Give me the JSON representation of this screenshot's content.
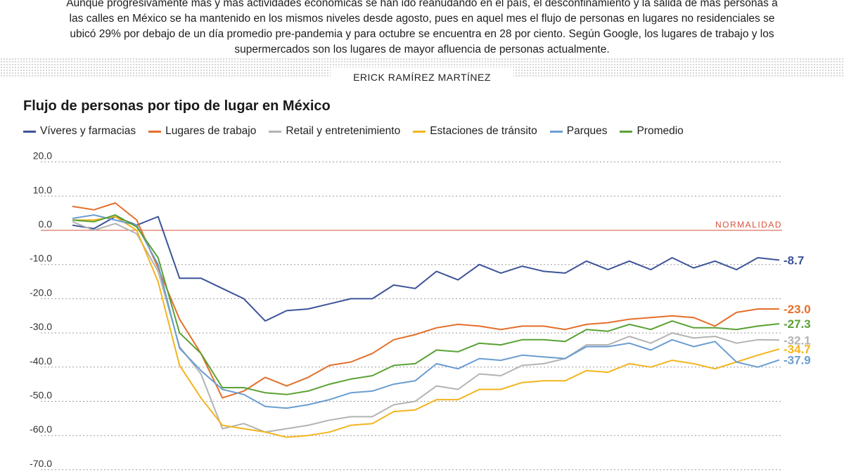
{
  "intro": [
    "Aunque progresivamente más y más actividades económicas se han ido reanudando en el país, el desconfinamiento y la salida de más personas a",
    "las calles en México se ha mantenido en los mismos niveles desde agosto, pues en aquel mes el flujo de personas en lugares no residenciales se",
    "ubicó 29% por debajo de un día promedio pre-pandemia y para octubre se encuentra en 28 por ciento. Según Google, los lugares de trabajo y los",
    "supermercados son los lugares de mayor afluencia de personas actualmente."
  ],
  "byline": "ERICK RAMÍREZ MARTÍNEZ",
  "chart_data": {
    "type": "line",
    "title": "Flujo de personas por tipo de lugar en México",
    "xlabel": "",
    "ylabel": "",
    "ylim": [
      -70,
      20
    ],
    "yticks": [
      "20.0",
      "10.0",
      "0.0",
      "-10.0",
      "-20.0",
      "-30.0",
      "-40.0",
      "-50.0",
      "-60.0",
      "-70.0"
    ],
    "grid": true,
    "legend_position": "top-left",
    "reference_line": {
      "label": "NORMALIDAD",
      "value": 0,
      "color": "#d94f3a"
    },
    "series": [
      {
        "name": "Víveres y farmacias",
        "color": "#3d5499",
        "end_label": "-8.7",
        "values": [
          1.5,
          0.5,
          4,
          1.5,
          4,
          -14,
          -14,
          -17,
          -20,
          -26.5,
          -23.5,
          -23,
          -21.5,
          -20,
          -20,
          -16,
          -17,
          -12,
          -14.5,
          -10,
          -12.5,
          -10.5,
          -12,
          -12.5,
          -9,
          -11.5,
          -9,
          -11.5,
          -8,
          -11,
          -9,
          -11.5,
          -8,
          -8.7
        ]
      },
      {
        "name": "Lugares de trabajo",
        "color": "#e46f2b",
        "end_label": "-23.0",
        "values": [
          7,
          6,
          8,
          3,
          -11,
          -26,
          -36,
          -49,
          -47,
          -43,
          -45.5,
          -43,
          -39.5,
          -38.5,
          -36,
          -32,
          -30.5,
          -28.5,
          -27.5,
          -28,
          -29,
          -28,
          -28,
          -29,
          -27.5,
          -27,
          -26,
          -25.5,
          -25,
          -25.5,
          -28,
          -24,
          -23,
          -23.0
        ]
      },
      {
        "name": "Retail y entretenimiento",
        "color": "#b3b3b3",
        "end_label": "-32.1",
        "values": [
          2.5,
          0,
          2,
          -1,
          -12,
          -34,
          -42,
          -58,
          -56.5,
          -59,
          -58,
          -57,
          -55.5,
          -54.5,
          -54.5,
          -51,
          -50,
          -45.5,
          -46.5,
          -42,
          -42.5,
          -39.5,
          -39,
          -37.5,
          -33.5,
          -33.5,
          -31,
          -33,
          -30,
          -31.5,
          -31,
          -33,
          -32,
          -32.1
        ]
      },
      {
        "name": "Estaciones de tránsito",
        "color": "#f2b51d",
        "end_label": "-34.7",
        "values": [
          3,
          3,
          4,
          0,
          -15,
          -39.5,
          -49,
          -57,
          -58,
          -59,
          -60.5,
          -60,
          -59,
          -57,
          -56.5,
          -53,
          -52.5,
          -49.5,
          -49.5,
          -46.5,
          -46.5,
          -44.5,
          -44,
          -44,
          -41,
          -41.5,
          -39,
          -40,
          -38,
          -39,
          -40.5,
          -38.5,
          -36.5,
          -34.7
        ]
      },
      {
        "name": "Parques",
        "color": "#6a9dd1",
        "end_label": "-37.9",
        "values": [
          3.5,
          4.5,
          3,
          1.5,
          -10,
          -34.5,
          -41,
          -46.5,
          -48,
          -51.5,
          -52,
          -51,
          -49.5,
          -47.5,
          -47,
          -45,
          -44,
          -39,
          -40.5,
          -37.5,
          -38,
          -36.5,
          -37,
          -37.5,
          -34,
          -34,
          -33,
          -35,
          -32,
          -34,
          -32.5,
          -38.5,
          -40,
          -37.9
        ]
      },
      {
        "name": "Promedio",
        "color": "#5aa134",
        "end_label": "-27.3",
        "values": [
          3,
          2.5,
          4.5,
          1,
          -8,
          -30,
          -36,
          -46,
          -46,
          -47.5,
          -48,
          -47,
          -45,
          -43.5,
          -42.5,
          -39.5,
          -39,
          -35,
          -35.5,
          -33,
          -33.5,
          -32,
          -32,
          -32.5,
          -29,
          -29.5,
          -27.5,
          -29,
          -26.5,
          -28.5,
          -28.5,
          -29,
          -28,
          -27.3
        ]
      }
    ]
  }
}
